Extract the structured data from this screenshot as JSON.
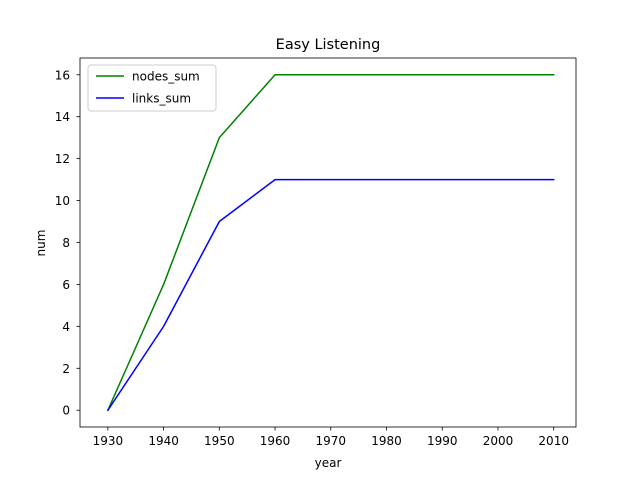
{
  "chart_data": {
    "type": "line",
    "title": "Easy Listening",
    "xlabel": "year",
    "ylabel": "num",
    "x": [
      1930,
      1940,
      1950,
      1960,
      1970,
      1980,
      1990,
      2000,
      2010
    ],
    "series": [
      {
        "name": "nodes_sum",
        "color": "#008000",
        "values": [
          0,
          6,
          13,
          16,
          16,
          16,
          16,
          16,
          16
        ]
      },
      {
        "name": "links_sum",
        "color": "#0000ff",
        "values": [
          0,
          4,
          9,
          11,
          11,
          11,
          11,
          11,
          11
        ]
      }
    ],
    "xticks": [
      1930,
      1940,
      1950,
      1960,
      1970,
      1980,
      1990,
      2000,
      2010
    ],
    "yticks": [
      0,
      2,
      4,
      6,
      8,
      10,
      12,
      14,
      16
    ],
    "xlim": [
      1925,
      2014
    ],
    "ylim": [
      -0.8,
      16.8
    ],
    "grid": false,
    "legend_position": "upper left"
  }
}
